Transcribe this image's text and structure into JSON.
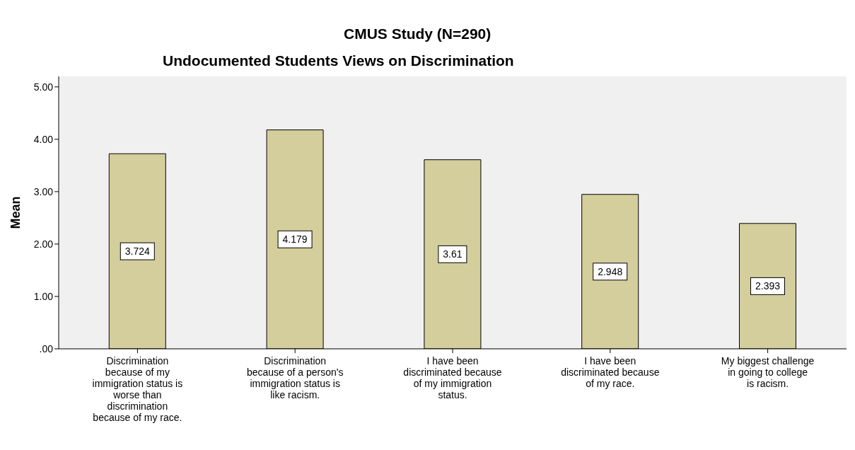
{
  "chart_data": {
    "type": "bar",
    "title": "CMUS Study (N=290)",
    "subtitle": "Undocumented Students Views on Discrimination",
    "ylabel": "Mean",
    "categories": [
      "Discrimination because of my immigration status is worse than discrimination because of my race.",
      "Discrimination because of a person's immigration status is like racism.",
      "I have been discriminated because of my immigration status.",
      "I have been discriminated because of my race.",
      "My biggest challenge in going to college is racism."
    ],
    "values": [
      3.724,
      4.179,
      3.61,
      2.948,
      2.393
    ],
    "color": "#d3ce9b",
    "ylim": [
      0,
      5.2
    ],
    "yticks": [
      {
        "value": 0,
        "label": ".00"
      },
      {
        "value": 1,
        "label": "1.00"
      },
      {
        "value": 2,
        "label": "2.00"
      },
      {
        "value": 3,
        "label": "3.00"
      },
      {
        "value": 4,
        "label": "4.00"
      },
      {
        "value": 5,
        "label": "5.00"
      }
    ],
    "data_labels": true,
    "grid": false,
    "legend": false
  }
}
